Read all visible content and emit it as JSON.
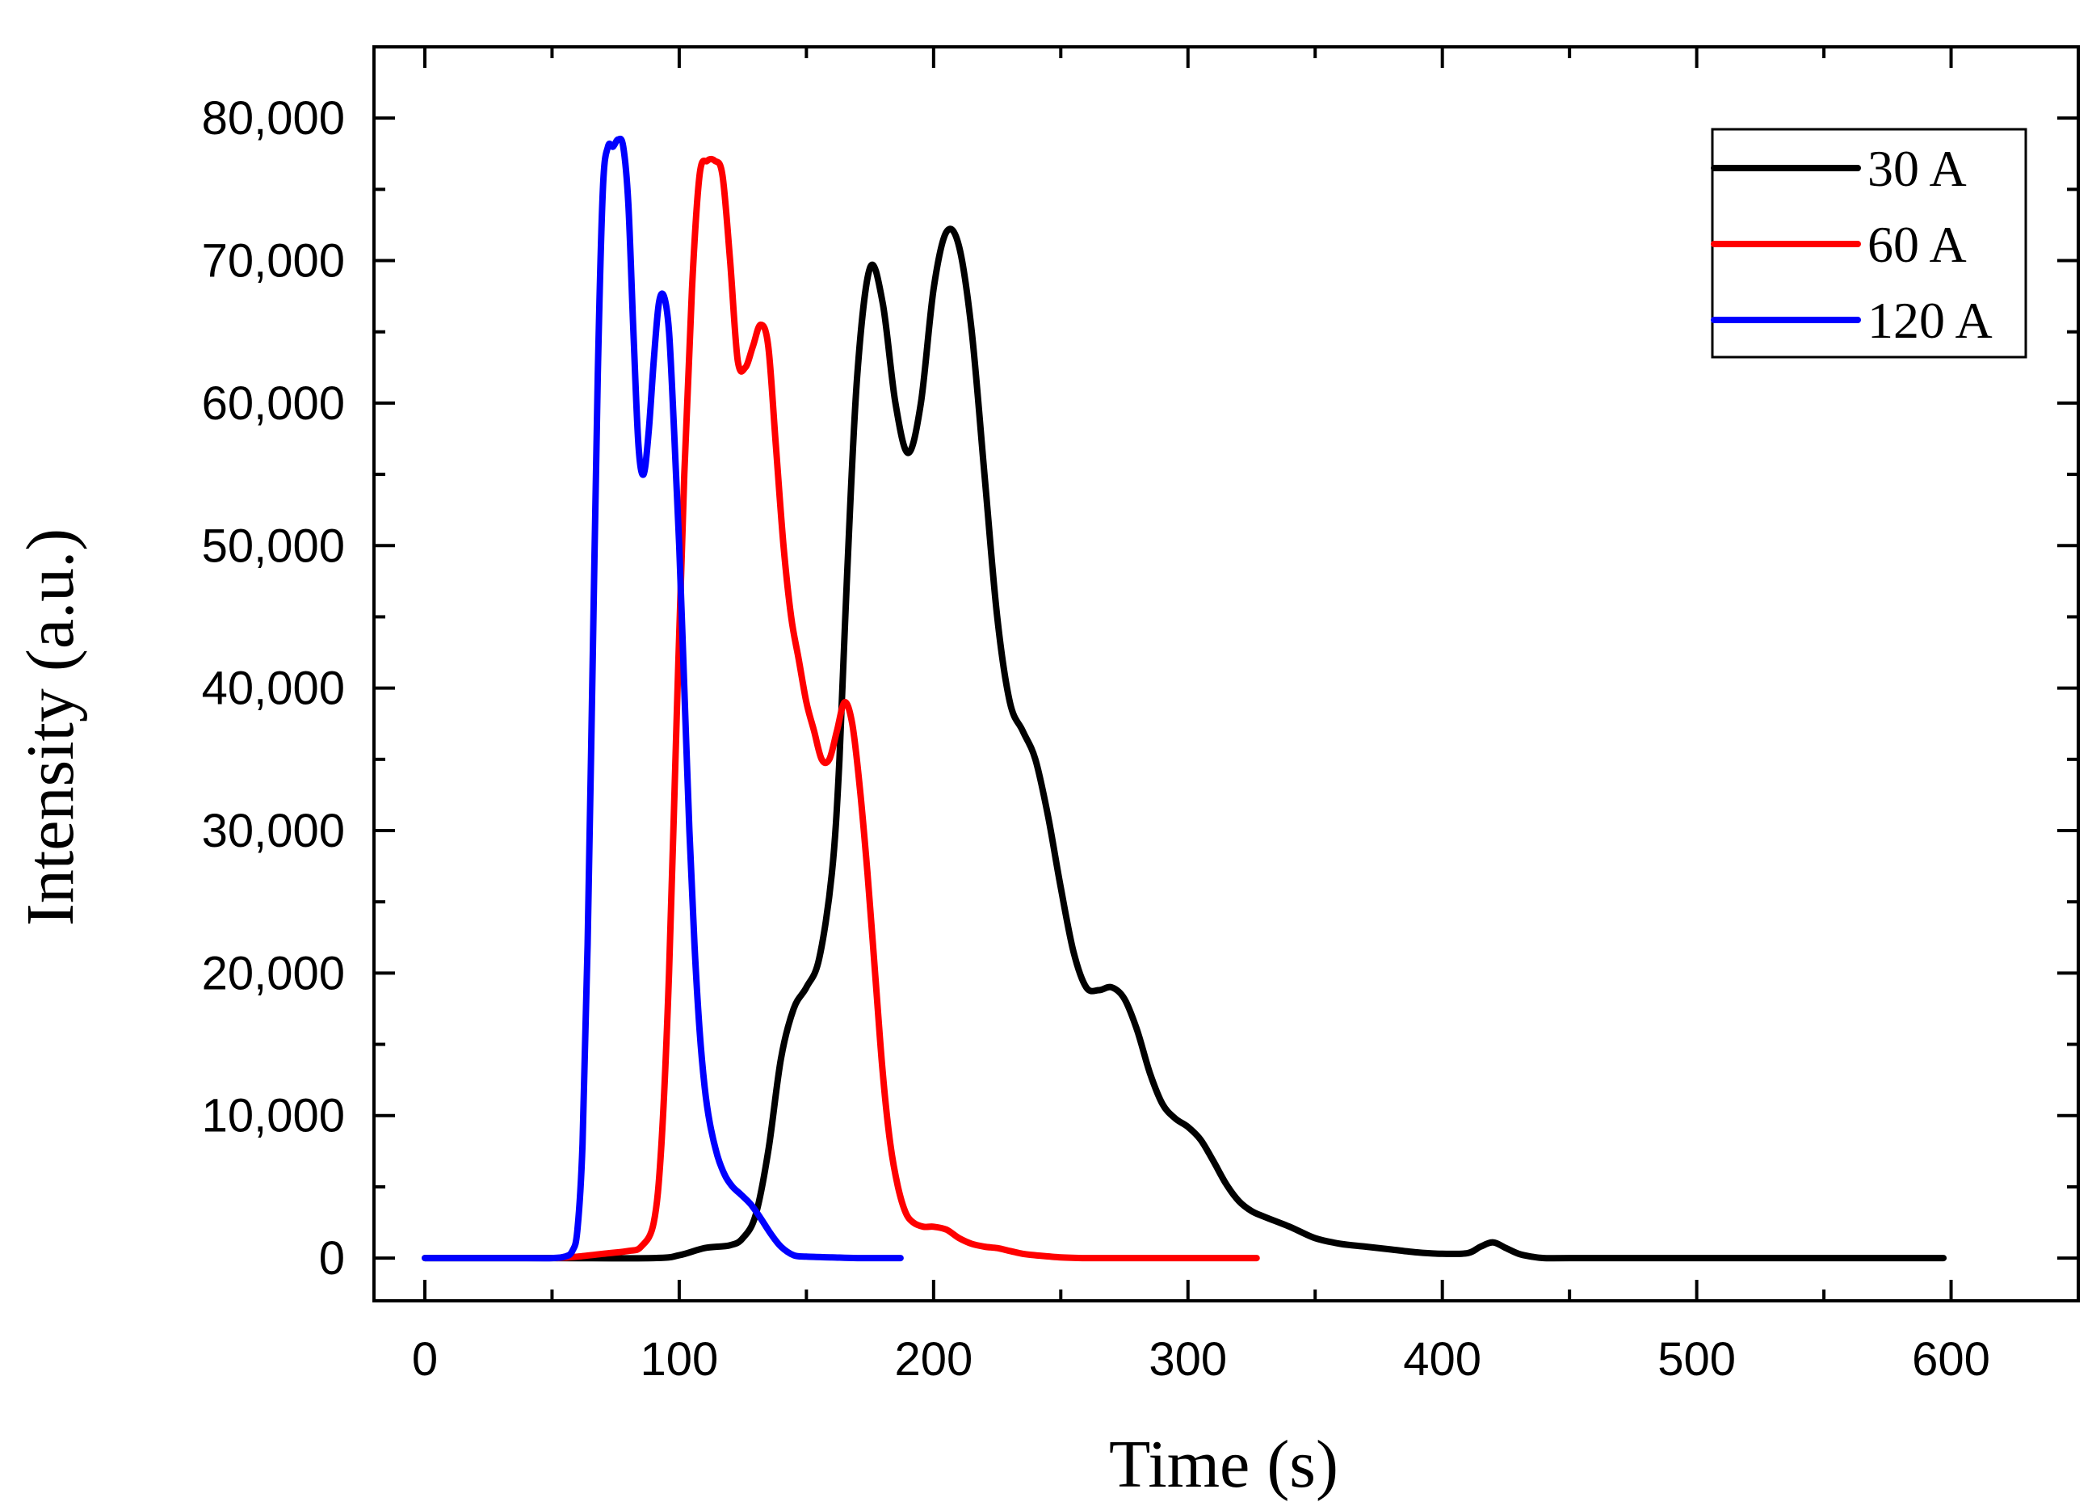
{
  "chart_data": {
    "type": "line",
    "title": "",
    "xlabel": "Time (s)",
    "ylabel": "Intensity (a.u.)",
    "xlim": [
      -20,
      650
    ],
    "ylim": [
      -3000,
      85000
    ],
    "xticks": [
      0,
      100,
      200,
      300,
      400,
      500,
      600
    ],
    "xtick_labels": [
      "0",
      "100",
      "200",
      "300",
      "400",
      "500",
      "600"
    ],
    "yticks": [
      0,
      10000,
      20000,
      30000,
      40000,
      50000,
      60000,
      70000,
      80000
    ],
    "ytick_labels": [
      "0",
      "10,000",
      "20,000",
      "30,000",
      "40,000",
      "50,000",
      "60,000",
      "70,000",
      "80,000"
    ],
    "legend_position": "top-right",
    "series": [
      {
        "name": "30 A",
        "color": "#000000",
        "x": [
          0,
          50,
          90,
          100,
          110,
          120,
          125,
          130,
          135,
          140,
          145,
          150,
          155,
          160,
          163,
          166,
          170,
          175,
          180,
          185,
          190,
          195,
          200,
          205,
          210,
          215,
          220,
          225,
          230,
          235,
          240,
          245,
          250,
          255,
          260,
          265,
          270,
          275,
          280,
          285,
          290,
          295,
          300,
          305,
          310,
          315,
          320,
          325,
          330,
          340,
          350,
          360,
          370,
          380,
          390,
          400,
          410,
          415,
          420,
          425,
          430,
          435,
          440,
          450,
          500,
          550,
          597
        ],
        "y": [
          0,
          0,
          0,
          200,
          700,
          900,
          1400,
          3000,
          7500,
          14000,
          17500,
          19000,
          21000,
          27000,
          35000,
          48000,
          62000,
          69500,
          67000,
          60000,
          56500,
          60000,
          68000,
          72000,
          71000,
          65000,
          55000,
          45000,
          39000,
          37000,
          35000,
          31000,
          26000,
          21500,
          19000,
          18800,
          19000,
          18200,
          16000,
          13000,
          10800,
          9800,
          9200,
          8300,
          6800,
          5200,
          4000,
          3300,
          2900,
          2200,
          1400,
          1000,
          800,
          600,
          400,
          300,
          350,
          800,
          1100,
          700,
          300,
          100,
          0,
          0,
          0,
          0,
          0
        ]
      },
      {
        "name": "60 A",
        "color": "#ff0000",
        "x": [
          52,
          60,
          70,
          80,
          85,
          90,
          93,
          96,
          99,
          102,
          105,
          108,
          111,
          114,
          117,
          120,
          123,
          126,
          129,
          132,
          135,
          138,
          141,
          144,
          147,
          150,
          153,
          156,
          159,
          162,
          165,
          168,
          171,
          174,
          177,
          180,
          183,
          186,
          189,
          192,
          196,
          200,
          205,
          210,
          215,
          220,
          225,
          230,
          235,
          240,
          250,
          260,
          280,
          300,
          327
        ],
        "y": [
          0,
          100,
          300,
          500,
          800,
          2500,
          8000,
          20000,
          38000,
          55000,
          68000,
          76000,
          77000,
          77000,
          76000,
          70000,
          63000,
          62500,
          64000,
          65500,
          64000,
          57000,
          50000,
          45000,
          42000,
          39000,
          37000,
          35000,
          35000,
          37000,
          39000,
          37500,
          33000,
          27000,
          20000,
          13000,
          8000,
          5000,
          3200,
          2500,
          2200,
          2200,
          2000,
          1400,
          1000,
          800,
          700,
          500,
          300,
          200,
          50,
          0,
          0,
          0,
          0
        ]
      },
      {
        "name": "120 A",
        "color": "#0000ff",
        "x": [
          0,
          40,
          50,
          55,
          58,
          60,
          62,
          64,
          66,
          68,
          70,
          72,
          74,
          76,
          78,
          80,
          82,
          84,
          86,
          88,
          90,
          92,
          94,
          96,
          98,
          100,
          102,
          104,
          106,
          108,
          110,
          112,
          115,
          118,
          121,
          124,
          128,
          132,
          136,
          140,
          145,
          150,
          160,
          170,
          187
        ],
        "y": [
          0,
          0,
          0,
          100,
          500,
          2000,
          8000,
          22000,
          42000,
          62000,
          75000,
          78000,
          78000,
          78500,
          78000,
          74000,
          65000,
          57000,
          55000,
          58000,
          63000,
          67000,
          67500,
          65000,
          58000,
          50000,
          40000,
          30000,
          22000,
          16000,
          12000,
          9500,
          7200,
          5800,
          5000,
          4500,
          3800,
          2800,
          1700,
          800,
          200,
          100,
          50,
          0,
          0
        ]
      }
    ]
  }
}
